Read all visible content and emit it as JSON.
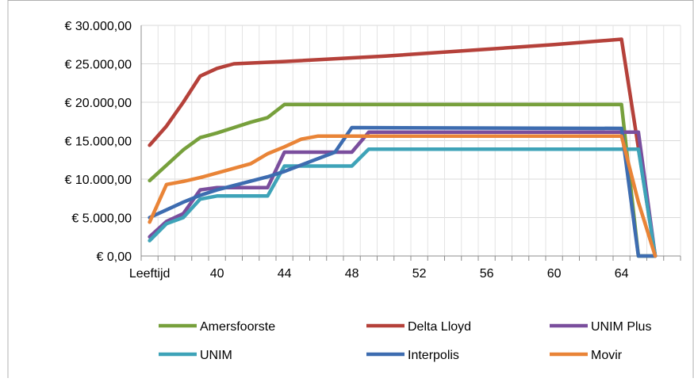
{
  "chart_data": {
    "type": "line",
    "title": "",
    "xlabel": "",
    "ylabel": "",
    "x_first_label": "Leeftijd",
    "x_ticks": [
      40,
      44,
      48,
      52,
      56,
      60,
      64
    ],
    "x_range": [
      35.5,
      67.5
    ],
    "ylim": [
      0,
      30000
    ],
    "y_ticks": [
      "€ 0,00",
      "€ 5.000,00",
      "€ 10.000,00",
      "€ 15.000,00",
      "€ 20.000,00",
      "€ 25.000,00",
      "€ 30.000,00"
    ],
    "grid": true,
    "legend_position": "bottom",
    "series": [
      {
        "name": "Amersfoorste",
        "color": "#77a03c",
        "points": [
          [
            36,
            9800
          ],
          [
            37,
            11800
          ],
          [
            38,
            13800
          ],
          [
            39,
            15400
          ],
          [
            40,
            16000
          ],
          [
            41,
            16700
          ],
          [
            42,
            17400
          ],
          [
            43,
            18000
          ],
          [
            44,
            19700
          ],
          [
            64,
            19700
          ],
          [
            65,
            0
          ],
          [
            66,
            0
          ]
        ]
      },
      {
        "name": "Delta Lloyd",
        "color": "#b5413a",
        "points": [
          [
            36,
            14400
          ],
          [
            37,
            16900
          ],
          [
            38,
            20000
          ],
          [
            39,
            23400
          ],
          [
            40,
            24400
          ],
          [
            41,
            25000
          ],
          [
            44,
            25300
          ],
          [
            50,
            26000
          ],
          [
            56,
            26900
          ],
          [
            60,
            27500
          ],
          [
            64,
            28200
          ],
          [
            66,
            0
          ]
        ]
      },
      {
        "name": "UNIM Plus",
        "color": "#7a4e9d",
        "points": [
          [
            36,
            2500
          ],
          [
            37,
            4500
          ],
          [
            38,
            5500
          ],
          [
            39,
            8600
          ],
          [
            40,
            8900
          ],
          [
            43,
            8900
          ],
          [
            44,
            13500
          ],
          [
            48,
            13500
          ],
          [
            49,
            16100
          ],
          [
            65,
            16100
          ],
          [
            66,
            0
          ]
        ]
      },
      {
        "name": "UNIM",
        "color": "#3ea3b8",
        "points": [
          [
            36,
            2000
          ],
          [
            37,
            4200
          ],
          [
            38,
            5000
          ],
          [
            39,
            7400
          ],
          [
            40,
            7800
          ],
          [
            43,
            7800
          ],
          [
            44,
            11700
          ],
          [
            48,
            11700
          ],
          [
            49,
            13900
          ],
          [
            65,
            13900
          ],
          [
            66,
            0
          ]
        ]
      },
      {
        "name": "Interpolis",
        "color": "#3d6cb0",
        "points": [
          [
            36,
            5000
          ],
          [
            37,
            6000
          ],
          [
            38,
            7000
          ],
          [
            39,
            7900
          ],
          [
            40,
            8600
          ],
          [
            43,
            10300
          ],
          [
            44,
            11000
          ],
          [
            47,
            13500
          ],
          [
            48,
            16700
          ],
          [
            64,
            16600
          ],
          [
            65,
            0
          ],
          [
            66,
            0
          ]
        ]
      },
      {
        "name": "Movir",
        "color": "#e98437",
        "points": [
          [
            36,
            4400
          ],
          [
            37,
            9300
          ],
          [
            38,
            9700
          ],
          [
            39,
            10200
          ],
          [
            42,
            12000
          ],
          [
            43,
            13300
          ],
          [
            44,
            14200
          ],
          [
            45,
            15200
          ],
          [
            46,
            15600
          ],
          [
            64,
            15600
          ],
          [
            65,
            7000
          ],
          [
            66,
            0
          ]
        ]
      }
    ]
  }
}
